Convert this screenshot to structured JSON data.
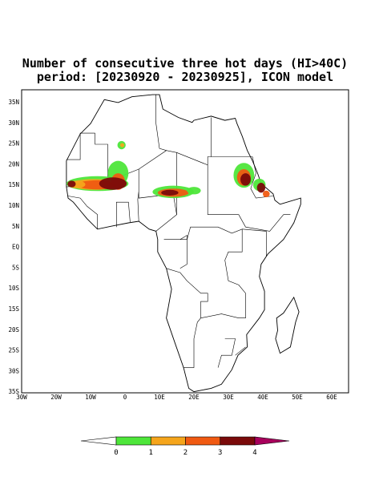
{
  "title": {
    "line1": "Number of consecutive three hot days (HI>40C)",
    "line2": "period: [20230920 - 20230925], ICON model"
  },
  "map": {
    "lat_labels": [
      "35N",
      "30N",
      "25N",
      "20N",
      "15N",
      "10N",
      "5N",
      "EQ",
      "5S",
      "10S",
      "15S",
      "20S",
      "25S",
      "30S",
      "35S"
    ],
    "lon_labels": [
      "30W",
      "20W",
      "10W",
      "0",
      "10E",
      "20E",
      "30E",
      "40E",
      "50E",
      "60E"
    ]
  },
  "colorbar": {
    "labels": [
      "0",
      "1",
      "2",
      "3",
      "4"
    ],
    "colors": [
      "#ffffff",
      "#4ee63a",
      "#f5a51c",
      "#f05a12",
      "#7a0a0a",
      "#a8005c"
    ]
  }
}
